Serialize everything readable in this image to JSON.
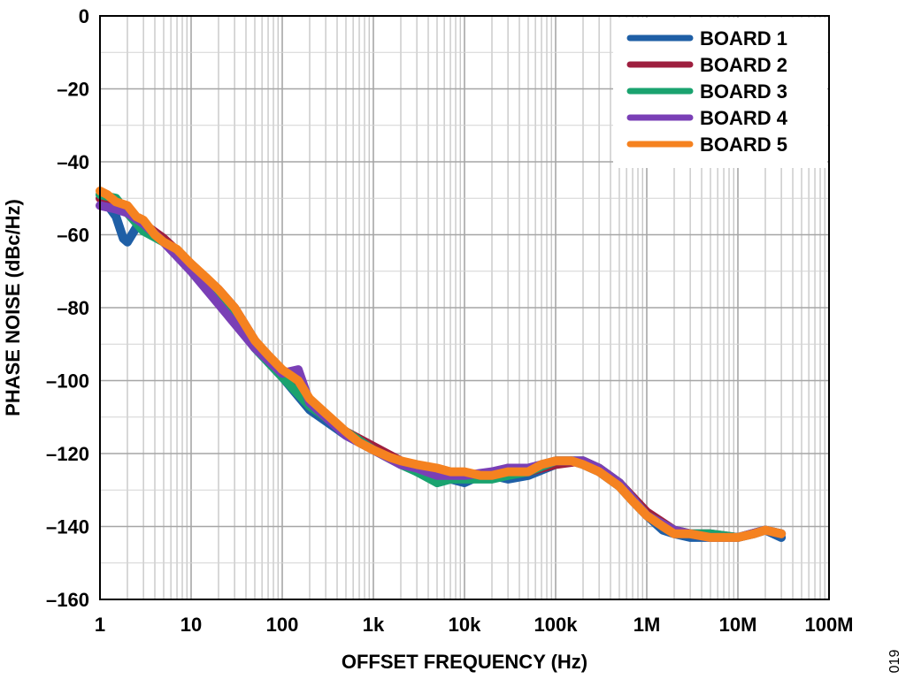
{
  "chart_data": {
    "type": "line",
    "xscale": "log",
    "xlim": [
      1,
      100000000
    ],
    "ylim": [
      -160,
      0
    ],
    "xlabel": "OFFSET FREQUENCY (Hz)",
    "ylabel": "PHASE NOISE (dBc/Hz)",
    "xtick_labels": [
      "1",
      "10",
      "100",
      "1k",
      "10k",
      "100k",
      "1M",
      "10M",
      "100M"
    ],
    "xtick_values": [
      1,
      10,
      100,
      1000,
      10000,
      100000,
      1000000,
      10000000,
      100000000
    ],
    "ytick_labels": [
      "0",
      "–20",
      "–40",
      "–60",
      "–80",
      "–100",
      "–120",
      "–140",
      "–160"
    ],
    "ytick_values": [
      0,
      -20,
      -40,
      -60,
      -80,
      -100,
      -120,
      -140,
      -160
    ],
    "grid": true,
    "legend_position": "top-right",
    "figure_id": "019",
    "series": [
      {
        "name": "BOARD 1",
        "color": "#1f5fa6",
        "x": [
          1,
          1.5,
          1.8,
          2,
          2.5,
          3,
          5,
          10,
          20,
          50,
          100,
          200,
          500,
          1000,
          2000,
          3000,
          5000,
          7000,
          10000,
          15000,
          20000,
          30000,
          50000,
          100000,
          150000,
          200000,
          300000,
          500000,
          700000,
          1000000,
          1500000,
          2000000,
          3000000,
          5000000,
          7000000,
          10000000,
          15000000,
          20000000,
          30000000
        ],
        "y": [
          -49,
          -55,
          -61,
          -62,
          -58,
          -57,
          -62,
          -69,
          -78,
          -91,
          -99,
          -108,
          -115,
          -119,
          -122,
          -124,
          -128,
          -127,
          -128,
          -126,
          -126,
          -127,
          -126,
          -123,
          -122,
          -123,
          -125,
          -129,
          -133,
          -137,
          -141,
          -142,
          -143,
          -143,
          -143,
          -143,
          -142,
          -141,
          -143
        ]
      },
      {
        "name": "BOARD 2",
        "color": "#9e1f3f",
        "x": [
          1,
          1.5,
          2,
          3,
          5,
          10,
          20,
          30,
          50,
          100,
          200,
          500,
          1000,
          2000,
          3000,
          5000,
          10000,
          20000,
          30000,
          50000,
          100000,
          200000,
          300000,
          500000,
          1000000,
          2000000,
          3000000,
          5000000,
          10000000,
          20000000,
          30000000
        ],
        "y": [
          -50,
          -51,
          -53,
          -57,
          -61,
          -68,
          -75,
          -80,
          -89,
          -98,
          -107,
          -114,
          -118,
          -122,
          -125,
          -125,
          -126,
          -126,
          -124,
          -125,
          -123,
          -122,
          -124,
          -128,
          -136,
          -141,
          -142,
          -142,
          -143,
          -141,
          -142
        ]
      },
      {
        "name": "BOARD 3",
        "color": "#1aa36f",
        "x": [
          1,
          1.5,
          2,
          3,
          5,
          10,
          20,
          50,
          100,
          200,
          500,
          1000,
          2000,
          3000,
          5000,
          7000,
          10000,
          20000,
          30000,
          50000,
          100000,
          200000,
          300000,
          500000,
          1000000,
          2000000,
          3000000,
          5000000,
          10000000,
          20000000,
          30000000
        ],
        "y": [
          -49,
          -50,
          -54,
          -59,
          -62,
          -69,
          -77,
          -91,
          -99,
          -107,
          -114,
          -119,
          -123,
          -125,
          -128,
          -127,
          -127,
          -127,
          -126,
          -125,
          -122,
          -122,
          -124,
          -128,
          -137,
          -141,
          -142,
          -142,
          -143,
          -141,
          -142
        ]
      },
      {
        "name": "BOARD 4",
        "color": "#7a3fb6",
        "x": [
          1,
          1.5,
          2,
          3,
          5,
          10,
          20,
          50,
          100,
          150,
          200,
          500,
          1000,
          2000,
          3000,
          5000,
          10000,
          20000,
          30000,
          50000,
          100000,
          200000,
          300000,
          500000,
          1000000,
          2000000,
          3000000,
          5000000,
          10000000,
          20000000,
          30000000
        ],
        "y": [
          -52,
          -53,
          -54,
          -57,
          -62,
          -70,
          -79,
          -91,
          -98,
          -97,
          -106,
          -115,
          -119,
          -123,
          -124,
          -126,
          -126,
          -125,
          -124,
          -124,
          -122,
          -122,
          -124,
          -128,
          -137,
          -141,
          -142,
          -143,
          -143,
          -141,
          -142
        ]
      },
      {
        "name": "BOARD 5",
        "color": "#f58220",
        "x": [
          1,
          1.2,
          1.5,
          2,
          2.5,
          3,
          4,
          5,
          7,
          10,
          15,
          20,
          30,
          50,
          70,
          100,
          150,
          200,
          300,
          500,
          700,
          1000,
          1500,
          2000,
          3000,
          5000,
          7000,
          10000,
          15000,
          20000,
          30000,
          50000,
          70000,
          100000,
          150000,
          200000,
          300000,
          500000,
          700000,
          1000000,
          1500000,
          2000000,
          3000000,
          5000000,
          7000000,
          10000000,
          15000000,
          20000000,
          30000000
        ],
        "y": [
          -48,
          -49,
          -51,
          -52,
          -55,
          -56,
          -60,
          -62,
          -64,
          -68,
          -72,
          -75,
          -80,
          -89,
          -93,
          -97,
          -100,
          -105,
          -109,
          -114,
          -117,
          -119,
          -121,
          -122,
          -123,
          -124,
          -125,
          -125,
          -126,
          -126,
          -125,
          -125,
          -123,
          -122,
          -122,
          -123,
          -125,
          -129,
          -133,
          -137,
          -140,
          -142,
          -142,
          -143,
          -143,
          -143,
          -142,
          -141,
          -142
        ]
      }
    ]
  }
}
